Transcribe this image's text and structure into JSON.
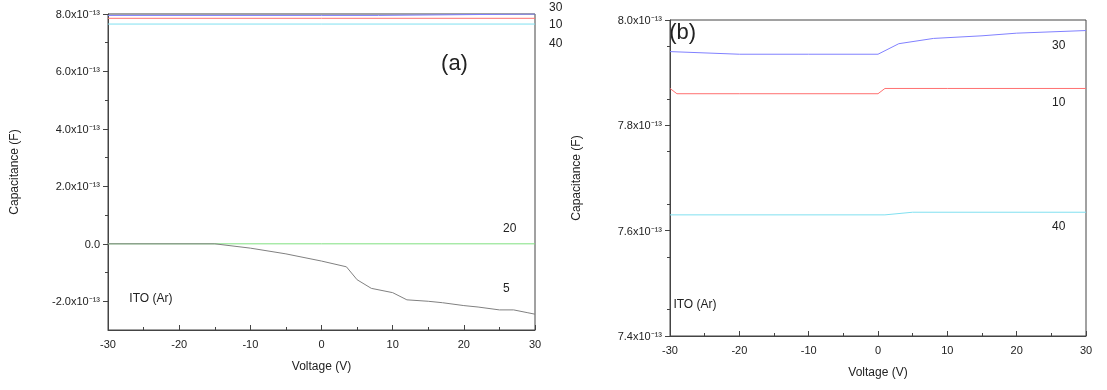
{
  "chart_data": [
    {
      "type": "line",
      "xlabel": "Voltage (V)",
      "ylabel": "Capacitance (F)",
      "annotations": [
        "(a)",
        "ITO (Ar)"
      ],
      "xlim": [
        -30,
        30
      ],
      "xticks": [
        -30,
        -20,
        -10,
        0,
        10,
        20,
        30
      ],
      "ylim": [
        -3e-13,
        8e-13
      ],
      "yticks": [
        {
          "value": -2e-13,
          "label": "-2.0x10⁻¹³"
        },
        {
          "value": 0,
          "label": "0.0"
        },
        {
          "value": 2e-13,
          "label": "2.0x10⁻¹³"
        },
        {
          "value": 4e-13,
          "label": "4.0x10⁻¹³"
        },
        {
          "value": 6e-13,
          "label": "6.0x10⁻¹³"
        },
        {
          "value": 8e-13,
          "label": "8.0x10⁻¹³"
        }
      ],
      "series": [
        {
          "name": "30",
          "color": "#8080ff",
          "x": [
            -30,
            0,
            8,
            30
          ],
          "values": [
            7.95e-13,
            7.95e-13,
            7.95e-13,
            8e-13
          ]
        },
        {
          "name": "10",
          "color": "#ff7070",
          "x": [
            -30,
            0,
            30
          ],
          "values": [
            7.85e-13,
            7.85e-13,
            7.85e-13
          ]
        },
        {
          "name": "40",
          "color": "#80e0f0",
          "x": [
            -30,
            0,
            30
          ],
          "values": [
            7.65e-13,
            7.65e-13,
            7.65e-13
          ]
        },
        {
          "name": "20",
          "color": "#80e080",
          "x": [
            -30,
            0,
            30
          ],
          "values": [
            0,
            0,
            0
          ]
        },
        {
          "name": "5",
          "color": "#808080",
          "x": [
            -30,
            -15,
            -10,
            -5,
            0,
            3.5,
            5,
            7,
            10,
            12,
            15,
            17,
            20,
            22,
            25,
            27,
            29,
            30
          ],
          "values": [
            0,
            0,
            -1.5e-14,
            -3.5e-14,
            -6e-14,
            -8e-14,
            -1.25e-13,
            -1.55e-13,
            -1.7e-13,
            -1.95e-13,
            -2e-13,
            -2.05e-13,
            -2.15e-13,
            -2.2e-13,
            -2.3e-13,
            -2.3e-13,
            -2.4e-13,
            -2.45e-13
          ]
        }
      ]
    },
    {
      "type": "line",
      "xlabel": "Voltage (V)",
      "ylabel": "Capacitance (F)",
      "annotations": [
        "(b)",
        "ITO (Ar)"
      ],
      "xlim": [
        -30,
        30
      ],
      "xticks": [
        -30,
        -20,
        -10,
        0,
        10,
        20,
        30
      ],
      "ylim": [
        7.4e-13,
        8e-13
      ],
      "yticks": [
        {
          "value": 7.4e-13,
          "label": "7.4x10⁻¹³"
        },
        {
          "value": 7.6e-13,
          "label": "7.6x10⁻¹³"
        },
        {
          "value": 7.8e-13,
          "label": "7.8x10⁻¹³"
        },
        {
          "value": 8e-13,
          "label": "8.0x10⁻¹³"
        }
      ],
      "series": [
        {
          "name": "30",
          "color": "#8080ff",
          "x": [
            -30,
            -20,
            -10,
            0,
            3,
            8,
            15,
            20,
            30
          ],
          "values": [
            7.94e-13,
            7.935e-13,
            7.935e-13,
            7.935e-13,
            7.955e-13,
            7.965e-13,
            7.97e-13,
            7.975e-13,
            7.98e-13
          ]
        },
        {
          "name": "10",
          "color": "#ff7070",
          "x": [
            -30,
            -29,
            -20,
            0,
            1,
            10,
            30
          ],
          "values": [
            7.87e-13,
            7.86e-13,
            7.86e-13,
            7.86e-13,
            7.87e-13,
            7.87e-13,
            7.87e-13
          ]
        },
        {
          "name": "40",
          "color": "#80e0f0",
          "x": [
            -30,
            1,
            5,
            15,
            30
          ],
          "values": [
            7.63e-13,
            7.63e-13,
            7.635e-13,
            7.635e-13,
            7.635e-13
          ]
        }
      ]
    }
  ]
}
